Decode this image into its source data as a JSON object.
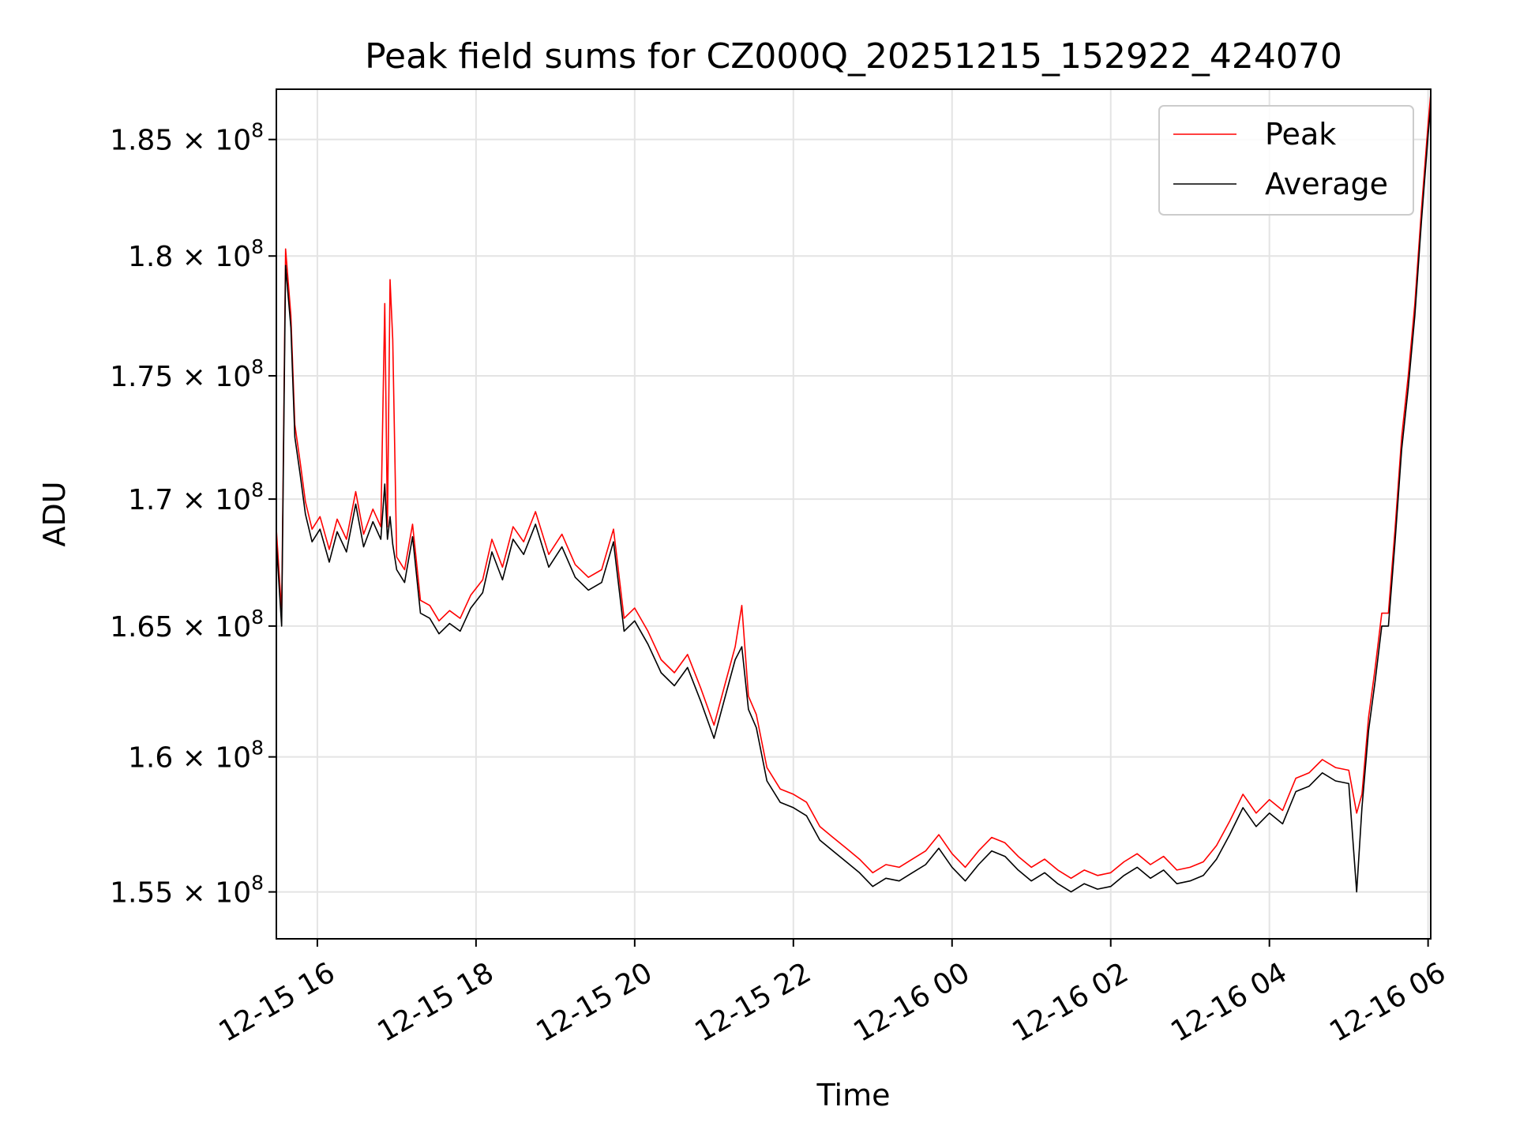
{
  "chart_data": {
    "type": "line",
    "title": "Peak field sums for CZ000Q_20251215_152922_424070",
    "xlabel": "Time",
    "ylabel": "ADU",
    "x_range": [
      "2025-12-15 15:29",
      "2025-12-16 06:02"
    ],
    "ylim": [
      153300000,
      187200000
    ],
    "y_scale": "log",
    "grid": true,
    "legend_position": "top-right",
    "x_ticks": [
      {
        "t": "2025-12-15 16:00",
        "label": "12-15 16"
      },
      {
        "t": "2025-12-15 18:00",
        "label": "12-15 18"
      },
      {
        "t": "2025-12-15 20:00",
        "label": "12-15 20"
      },
      {
        "t": "2025-12-15 22:00",
        "label": "12-15 22"
      },
      {
        "t": "2025-12-16 00:00",
        "label": "12-16 00"
      },
      {
        "t": "2025-12-16 02:00",
        "label": "12-16 02"
      },
      {
        "t": "2025-12-16 04:00",
        "label": "12-16 04"
      },
      {
        "t": "2025-12-16 06:00",
        "label": "12-16 06"
      }
    ],
    "y_ticks": [
      {
        "v": 155000000,
        "mant": "1.55",
        "exp": "8"
      },
      {
        "v": 160000000,
        "mant": "1.6",
        "exp": "8"
      },
      {
        "v": 165000000,
        "mant": "1.65",
        "exp": "8"
      },
      {
        "v": 170000000,
        "mant": "1.7",
        "exp": "8"
      },
      {
        "v": 175000000,
        "mant": "1.75",
        "exp": "8"
      },
      {
        "v": 180000000,
        "mant": "1.8",
        "exp": "8"
      },
      {
        "v": 185000000,
        "mant": "1.85",
        "exp": "8"
      }
    ],
    "tick_times_label": "× 10",
    "series": [
      {
        "name": "Peak",
        "color": "#ff0000",
        "points": [
          [
            "2025-12-15 15:29",
            168800000
          ],
          [
            "2025-12-15 15:33",
            165500000
          ],
          [
            "2025-12-15 15:36",
            180300000
          ],
          [
            "2025-12-15 15:40",
            177500000
          ],
          [
            "2025-12-15 15:43",
            173000000
          ],
          [
            "2025-12-15 15:47",
            171500000
          ],
          [
            "2025-12-15 15:51",
            169900000
          ],
          [
            "2025-12-15 15:56",
            168800000
          ],
          [
            "2025-12-15 16:02",
            169300000
          ],
          [
            "2025-12-15 16:09",
            168000000
          ],
          [
            "2025-12-15 16:15",
            169200000
          ],
          [
            "2025-12-15 16:22",
            168400000
          ],
          [
            "2025-12-15 16:29",
            170300000
          ],
          [
            "2025-12-15 16:35",
            168600000
          ],
          [
            "2025-12-15 16:42",
            169600000
          ],
          [
            "2025-12-15 16:48",
            168900000
          ],
          [
            "2025-12-15 16:51",
            178000000
          ],
          [
            "2025-12-15 16:53",
            168900000
          ],
          [
            "2025-12-15 16:55",
            179000000
          ],
          [
            "2025-12-15 16:57",
            176500000
          ],
          [
            "2025-12-15 17:00",
            167700000
          ],
          [
            "2025-12-15 17:06",
            167200000
          ],
          [
            "2025-12-15 17:12",
            169000000
          ],
          [
            "2025-12-15 17:18",
            166000000
          ],
          [
            "2025-12-15 17:25",
            165800000
          ],
          [
            "2025-12-15 17:32",
            165200000
          ],
          [
            "2025-12-15 17:40",
            165600000
          ],
          [
            "2025-12-15 17:48",
            165300000
          ],
          [
            "2025-12-15 17:56",
            166200000
          ],
          [
            "2025-12-15 18:05",
            166800000
          ],
          [
            "2025-12-15 18:12",
            168400000
          ],
          [
            "2025-12-15 18:20",
            167300000
          ],
          [
            "2025-12-15 18:28",
            168900000
          ],
          [
            "2025-12-15 18:36",
            168300000
          ],
          [
            "2025-12-15 18:45",
            169500000
          ],
          [
            "2025-12-15 18:55",
            167800000
          ],
          [
            "2025-12-15 19:05",
            168600000
          ],
          [
            "2025-12-15 19:15",
            167400000
          ],
          [
            "2025-12-15 19:25",
            166900000
          ],
          [
            "2025-12-15 19:35",
            167200000
          ],
          [
            "2025-12-15 19:44",
            168800000
          ],
          [
            "2025-12-15 19:52",
            165300000
          ],
          [
            "2025-12-15 20:00",
            165700000
          ],
          [
            "2025-12-15 20:10",
            164800000
          ],
          [
            "2025-12-15 20:20",
            163700000
          ],
          [
            "2025-12-15 20:30",
            163200000
          ],
          [
            "2025-12-15 20:40",
            163900000
          ],
          [
            "2025-12-15 20:50",
            162600000
          ],
          [
            "2025-12-15 21:00",
            161200000
          ],
          [
            "2025-12-15 21:08",
            162700000
          ],
          [
            "2025-12-15 21:16",
            164200000
          ],
          [
            "2025-12-15 21:21",
            165800000
          ],
          [
            "2025-12-15 21:26",
            162300000
          ],
          [
            "2025-12-15 21:32",
            161600000
          ],
          [
            "2025-12-15 21:40",
            159600000
          ],
          [
            "2025-12-15 21:50",
            158800000
          ],
          [
            "2025-12-15 22:00",
            158600000
          ],
          [
            "2025-12-15 22:10",
            158300000
          ],
          [
            "2025-12-15 22:20",
            157400000
          ],
          [
            "2025-12-15 22:30",
            157000000
          ],
          [
            "2025-12-15 22:40",
            156600000
          ],
          [
            "2025-12-15 22:50",
            156200000
          ],
          [
            "2025-12-15 23:00",
            155700000
          ],
          [
            "2025-12-15 23:10",
            156000000
          ],
          [
            "2025-12-15 23:20",
            155900000
          ],
          [
            "2025-12-15 23:30",
            156200000
          ],
          [
            "2025-12-15 23:40",
            156500000
          ],
          [
            "2025-12-15 23:50",
            157100000
          ],
          [
            "2025-12-16 00:00",
            156400000
          ],
          [
            "2025-12-16 00:10",
            155900000
          ],
          [
            "2025-12-16 00:20",
            156500000
          ],
          [
            "2025-12-16 00:30",
            157000000
          ],
          [
            "2025-12-16 00:40",
            156800000
          ],
          [
            "2025-12-16 00:50",
            156300000
          ],
          [
            "2025-12-16 01:00",
            155900000
          ],
          [
            "2025-12-16 01:10",
            156200000
          ],
          [
            "2025-12-16 01:20",
            155800000
          ],
          [
            "2025-12-16 01:30",
            155500000
          ],
          [
            "2025-12-16 01:40",
            155800000
          ],
          [
            "2025-12-16 01:50",
            155600000
          ],
          [
            "2025-12-16 02:00",
            155700000
          ],
          [
            "2025-12-16 02:10",
            156100000
          ],
          [
            "2025-12-16 02:20",
            156400000
          ],
          [
            "2025-12-16 02:30",
            156000000
          ],
          [
            "2025-12-16 02:40",
            156300000
          ],
          [
            "2025-12-16 02:50",
            155800000
          ],
          [
            "2025-12-16 03:00",
            155900000
          ],
          [
            "2025-12-16 03:10",
            156100000
          ],
          [
            "2025-12-16 03:20",
            156700000
          ],
          [
            "2025-12-16 03:30",
            157600000
          ],
          [
            "2025-12-16 03:40",
            158600000
          ],
          [
            "2025-12-16 03:50",
            157900000
          ],
          [
            "2025-12-16 04:00",
            158400000
          ],
          [
            "2025-12-16 04:10",
            158000000
          ],
          [
            "2025-12-16 04:20",
            159200000
          ],
          [
            "2025-12-16 04:30",
            159400000
          ],
          [
            "2025-12-16 04:40",
            159900000
          ],
          [
            "2025-12-16 04:50",
            159600000
          ],
          [
            "2025-12-16 05:00",
            159500000
          ],
          [
            "2025-12-16 05:06",
            157900000
          ],
          [
            "2025-12-16 05:10",
            158600000
          ],
          [
            "2025-12-16 05:15",
            161500000
          ],
          [
            "2025-12-16 05:20",
            163400000
          ],
          [
            "2025-12-16 05:25",
            165500000
          ],
          [
            "2025-12-16 05:30",
            165500000
          ],
          [
            "2025-12-16 05:35",
            168800000
          ],
          [
            "2025-12-16 05:40",
            172500000
          ],
          [
            "2025-12-16 05:45",
            175000000
          ],
          [
            "2025-12-16 05:50",
            178000000
          ],
          [
            "2025-12-16 05:55",
            182000000
          ],
          [
            "2025-12-16 06:00",
            185700000
          ],
          [
            "2025-12-16 06:02",
            187000000
          ]
        ]
      },
      {
        "name": "Average",
        "color": "#000000",
        "points": [
          [
            "2025-12-15 15:29",
            168300000
          ],
          [
            "2025-12-15 15:33",
            165000000
          ],
          [
            "2025-12-15 15:36",
            179600000
          ],
          [
            "2025-12-15 15:40",
            177000000
          ],
          [
            "2025-12-15 15:43",
            172500000
          ],
          [
            "2025-12-15 15:47",
            171000000
          ],
          [
            "2025-12-15 15:51",
            169400000
          ],
          [
            "2025-12-15 15:56",
            168300000
          ],
          [
            "2025-12-15 16:02",
            168800000
          ],
          [
            "2025-12-15 16:09",
            167500000
          ],
          [
            "2025-12-15 16:15",
            168700000
          ],
          [
            "2025-12-15 16:22",
            167900000
          ],
          [
            "2025-12-15 16:29",
            169800000
          ],
          [
            "2025-12-15 16:35",
            168100000
          ],
          [
            "2025-12-15 16:42",
            169100000
          ],
          [
            "2025-12-15 16:48",
            168400000
          ],
          [
            "2025-12-15 16:51",
            170600000
          ],
          [
            "2025-12-15 16:53",
            168400000
          ],
          [
            "2025-12-15 16:55",
            169300000
          ],
          [
            "2025-12-15 16:57",
            168200000
          ],
          [
            "2025-12-15 17:00",
            167200000
          ],
          [
            "2025-12-15 17:06",
            166700000
          ],
          [
            "2025-12-15 17:12",
            168500000
          ],
          [
            "2025-12-15 17:18",
            165500000
          ],
          [
            "2025-12-15 17:25",
            165300000
          ],
          [
            "2025-12-15 17:32",
            164700000
          ],
          [
            "2025-12-15 17:40",
            165100000
          ],
          [
            "2025-12-15 17:48",
            164800000
          ],
          [
            "2025-12-15 17:56",
            165700000
          ],
          [
            "2025-12-15 18:05",
            166300000
          ],
          [
            "2025-12-15 18:12",
            167900000
          ],
          [
            "2025-12-15 18:20",
            166800000
          ],
          [
            "2025-12-15 18:28",
            168400000
          ],
          [
            "2025-12-15 18:36",
            167800000
          ],
          [
            "2025-12-15 18:45",
            169000000
          ],
          [
            "2025-12-15 18:55",
            167300000
          ],
          [
            "2025-12-15 19:05",
            168100000
          ],
          [
            "2025-12-15 19:15",
            166900000
          ],
          [
            "2025-12-15 19:25",
            166400000
          ],
          [
            "2025-12-15 19:35",
            166700000
          ],
          [
            "2025-12-15 19:44",
            168300000
          ],
          [
            "2025-12-15 19:52",
            164800000
          ],
          [
            "2025-12-15 20:00",
            165200000
          ],
          [
            "2025-12-15 20:10",
            164300000
          ],
          [
            "2025-12-15 20:20",
            163200000
          ],
          [
            "2025-12-15 20:30",
            162700000
          ],
          [
            "2025-12-15 20:40",
            163400000
          ],
          [
            "2025-12-15 20:50",
            162100000
          ],
          [
            "2025-12-15 21:00",
            160700000
          ],
          [
            "2025-12-15 21:08",
            162200000
          ],
          [
            "2025-12-15 21:16",
            163700000
          ],
          [
            "2025-12-15 21:21",
            164200000
          ],
          [
            "2025-12-15 21:26",
            161800000
          ],
          [
            "2025-12-15 21:32",
            161100000
          ],
          [
            "2025-12-15 21:40",
            159100000
          ],
          [
            "2025-12-15 21:50",
            158300000
          ],
          [
            "2025-12-15 22:00",
            158100000
          ],
          [
            "2025-12-15 22:10",
            157800000
          ],
          [
            "2025-12-15 22:20",
            156900000
          ],
          [
            "2025-12-15 22:30",
            156500000
          ],
          [
            "2025-12-15 22:40",
            156100000
          ],
          [
            "2025-12-15 22:50",
            155700000
          ],
          [
            "2025-12-15 23:00",
            155200000
          ],
          [
            "2025-12-15 23:10",
            155500000
          ],
          [
            "2025-12-15 23:20",
            155400000
          ],
          [
            "2025-12-15 23:30",
            155700000
          ],
          [
            "2025-12-15 23:40",
            156000000
          ],
          [
            "2025-12-15 23:50",
            156600000
          ],
          [
            "2025-12-16 00:00",
            155900000
          ],
          [
            "2025-12-16 00:10",
            155400000
          ],
          [
            "2025-12-16 00:20",
            156000000
          ],
          [
            "2025-12-16 00:30",
            156500000
          ],
          [
            "2025-12-16 00:40",
            156300000
          ],
          [
            "2025-12-16 00:50",
            155800000
          ],
          [
            "2025-12-16 01:00",
            155400000
          ],
          [
            "2025-12-16 01:10",
            155700000
          ],
          [
            "2025-12-16 01:20",
            155300000
          ],
          [
            "2025-12-16 01:30",
            155000000
          ],
          [
            "2025-12-16 01:40",
            155300000
          ],
          [
            "2025-12-16 01:50",
            155100000
          ],
          [
            "2025-12-16 02:00",
            155200000
          ],
          [
            "2025-12-16 02:10",
            155600000
          ],
          [
            "2025-12-16 02:20",
            155900000
          ],
          [
            "2025-12-16 02:30",
            155500000
          ],
          [
            "2025-12-16 02:40",
            155800000
          ],
          [
            "2025-12-16 02:50",
            155300000
          ],
          [
            "2025-12-16 03:00",
            155400000
          ],
          [
            "2025-12-16 03:10",
            155600000
          ],
          [
            "2025-12-16 03:20",
            156200000
          ],
          [
            "2025-12-16 03:30",
            157100000
          ],
          [
            "2025-12-16 03:40",
            158100000
          ],
          [
            "2025-12-16 03:50",
            157400000
          ],
          [
            "2025-12-16 04:00",
            157900000
          ],
          [
            "2025-12-16 04:10",
            157500000
          ],
          [
            "2025-12-16 04:20",
            158700000
          ],
          [
            "2025-12-16 04:30",
            158900000
          ],
          [
            "2025-12-16 04:40",
            159400000
          ],
          [
            "2025-12-16 04:50",
            159100000
          ],
          [
            "2025-12-16 05:00",
            159000000
          ],
          [
            "2025-12-16 05:06",
            155000000
          ],
          [
            "2025-12-16 05:10",
            158100000
          ],
          [
            "2025-12-16 05:15",
            161000000
          ],
          [
            "2025-12-16 05:20",
            162900000
          ],
          [
            "2025-12-16 05:25",
            165000000
          ],
          [
            "2025-12-16 05:30",
            165000000
          ],
          [
            "2025-12-16 05:35",
            168300000
          ],
          [
            "2025-12-16 05:40",
            172000000
          ],
          [
            "2025-12-16 05:45",
            174500000
          ],
          [
            "2025-12-16 05:50",
            177500000
          ],
          [
            "2025-12-16 05:55",
            181500000
          ],
          [
            "2025-12-16 06:00",
            185200000
          ],
          [
            "2025-12-16 06:02",
            186500000
          ]
        ]
      }
    ]
  }
}
